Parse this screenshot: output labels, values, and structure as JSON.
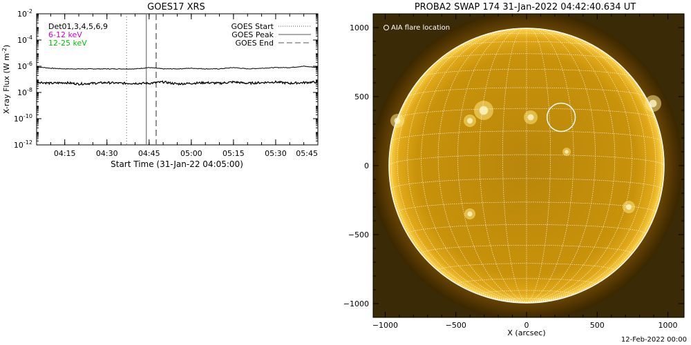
{
  "footer": {
    "stamp": "12-Feb-2022 00:00"
  },
  "colors": {
    "curve_low": "#000000",
    "curve_high": "#000000",
    "label_det": "#000000",
    "label_low": "#d000d0",
    "label_high": "#00c000",
    "sun_core": "#c88a00",
    "sun_bright": "#ffd24a",
    "grid": "#ffffff"
  },
  "chart_data": [
    {
      "type": "line",
      "title": "GOES17 XRS",
      "xlabel": "Start Time (31-Jan-22 04:05:00)",
      "ylabel": "X-ray Flux (W m^-2)",
      "ylabel_main": "X-ray Flux (W m",
      "ylabel_sup": "-2",
      "ylabel_close": ")",
      "y_scale": "log",
      "ylim_exp": [
        -12,
        -2
      ],
      "ytick_exps": [
        -12,
        -10,
        -8,
        -6,
        -4,
        -2
      ],
      "ytick_base": "10",
      "xlim_minutes": [
        0,
        100
      ],
      "xticks": [
        {
          "t": 10,
          "label": "04:15"
        },
        {
          "t": 25,
          "label": "04:30"
        },
        {
          "t": 40,
          "label": "04:45"
        },
        {
          "t": 55,
          "label": "05:00"
        },
        {
          "t": 70,
          "label": "05:15"
        },
        {
          "t": 85,
          "label": "05:30"
        },
        {
          "t": 100,
          "label": "05:45"
        }
      ],
      "labels": [
        {
          "text": "Det01,3,4,5,6,9",
          "color": "#000000"
        },
        {
          "text": "6-12 keV",
          "color": "#d000d0"
        },
        {
          "text": "12-25 keV",
          "color": "#00c000"
        }
      ],
      "series": [
        {
          "label": "6-12 keV",
          "x": [
            0,
            5,
            10,
            15,
            20,
            25,
            30,
            35,
            40,
            45,
            50,
            55,
            60,
            65,
            70,
            75,
            80,
            85,
            90,
            95,
            100
          ],
          "log10_flux": [
            -6.05,
            -6.15,
            -6.2,
            -6.2,
            -6.2,
            -6.2,
            -6.2,
            -6.2,
            -6.1,
            -6.2,
            -6.2,
            -6.15,
            -6.2,
            -6.2,
            -6.1,
            -6.2,
            -6.15,
            -6.1,
            -6.1,
            -6.0,
            -6.1
          ]
        },
        {
          "label": "12-25 keV",
          "x": [
            0,
            5,
            10,
            15,
            20,
            25,
            30,
            35,
            40,
            45,
            50,
            55,
            60,
            65,
            70,
            75,
            80,
            85,
            90,
            95,
            100
          ],
          "log10_flux": [
            -7.2,
            -7.3,
            -7.25,
            -7.35,
            -7.3,
            -7.25,
            -7.3,
            -7.3,
            -7.3,
            -7.2,
            -7.35,
            -7.3,
            -7.25,
            -7.3,
            -7.2,
            -7.3,
            -7.25,
            -7.2,
            -7.3,
            -7.25,
            -7.2
          ]
        }
      ],
      "events": [
        {
          "name": "GOES Start",
          "t": 32,
          "style": "dotted"
        },
        {
          "name": "GOES Peak",
          "t": 39,
          "style": "solid"
        },
        {
          "name": "GOES End",
          "t": 42.5,
          "style": "dashed"
        }
      ],
      "legend": "top-right",
      "grid": false
    },
    {
      "type": "image",
      "title": "PROBA2 SWAP 174 31-Jan-2022 04:42:40.634 UT",
      "xlabel": "X (arcsec)",
      "xlim": [
        -1100,
        1100
      ],
      "ylim": [
        -1100,
        1100
      ],
      "xticks": [
        {
          "v": -1000,
          "label": "−1000"
        },
        {
          "v": -500,
          "label": "−500"
        },
        {
          "v": 0,
          "label": "0"
        },
        {
          "v": 500,
          "label": "500"
        },
        {
          "v": 1000,
          "label": "1000"
        }
      ],
      "yticks": [
        {
          "v": -1000,
          "label": "−1000"
        },
        {
          "v": -500,
          "label": "−500"
        },
        {
          "v": 0,
          "label": "0"
        },
        {
          "v": 500,
          "label": "500"
        },
        {
          "v": 1000,
          "label": "1000"
        }
      ],
      "solar_radius_arcsec": 975,
      "grid_spacing_deg": 10,
      "flare_location_label": "AIA flare location",
      "flare_location": {
        "x": 245,
        "y": 350,
        "r": 100
      }
    }
  ]
}
